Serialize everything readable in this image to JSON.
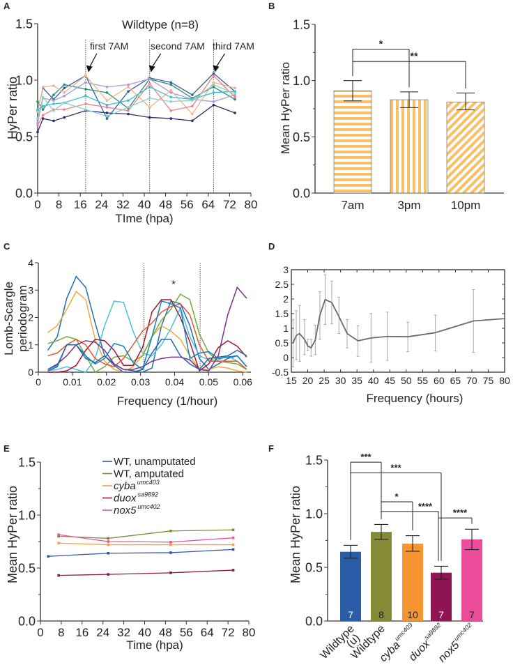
{
  "chart_data": [
    {
      "panel_label": "A",
      "type": "line",
      "title": "Wildtype (n=8)",
      "xlabel": "TIme (hpa)",
      "ylabel": "HyPer ratio",
      "xlim": [
        0,
        80
      ],
      "ylim": [
        0,
        1.5
      ],
      "xticks": [
        0,
        8,
        16,
        24,
        32,
        40,
        48,
        56,
        64,
        72,
        80
      ],
      "xtick_labels": [
        "0",
        "8",
        "16",
        "24",
        "32",
        "40",
        "48",
        "56",
        "64",
        "72",
        "80"
      ],
      "yticks": [
        0,
        0.5,
        1.0,
        1.5
      ],
      "ytick_labels": [
        "0.0",
        "0.5",
        "1.0",
        "1.5"
      ],
      "x": [
        0,
        2,
        6,
        10,
        18,
        26,
        34,
        42,
        50,
        58,
        66,
        74
      ],
      "series": [
        {
          "color": "#2b2d6e",
          "values": [
            0.54,
            0.66,
            0.64,
            0.67,
            0.73,
            0.71,
            0.7,
            0.67,
            0.66,
            0.64,
            0.78,
            0.71
          ]
        },
        {
          "color": "#2f5f9e",
          "values": [
            0.73,
            0.93,
            0.83,
            0.93,
            1.04,
            0.66,
            0.9,
            1.02,
            0.98,
            0.87,
            1.06,
            0.9
          ]
        },
        {
          "color": "#2a8a78",
          "values": [
            0.81,
            0.74,
            0.87,
            0.96,
            0.92,
            0.89,
            0.75,
            1.01,
            0.96,
            0.84,
            0.94,
            0.83
          ]
        },
        {
          "color": "#a99ad8",
          "values": [
            0.62,
            0.84,
            0.82,
            0.86,
            0.98,
            0.94,
            0.96,
            1.01,
            0.89,
            0.83,
            0.81,
            0.87
          ]
        },
        {
          "color": "#f3b28a",
          "values": [
            0.72,
            0.94,
            0.95,
            0.89,
            1.04,
            0.82,
            0.94,
            0.76,
            0.91,
            0.7,
            0.98,
            0.93
          ]
        },
        {
          "color": "#ef7f86",
          "values": [
            0.6,
            0.69,
            0.74,
            0.74,
            0.79,
            0.76,
            0.73,
            0.97,
            0.73,
            0.77,
            1.04,
            0.85
          ]
        },
        {
          "color": "#3cbcd6",
          "values": [
            0.74,
            0.77,
            0.79,
            0.8,
            0.86,
            0.78,
            0.82,
            0.94,
            0.85,
            0.83,
            0.89,
            0.9
          ]
        },
        {
          "color": "#8ccfc0",
          "values": [
            0.66,
            0.85,
            0.73,
            0.8,
            0.74,
            0.68,
            0.76,
            0.84,
            0.81,
            0.82,
            0.96,
            0.88
          ]
        }
      ],
      "vlines": [
        18,
        42,
        66
      ],
      "annotations": [
        {
          "text": "first 7AM",
          "x": 18
        },
        {
          "text": "second 7AM",
          "x": 42
        },
        {
          "text": "third 7AM",
          "x": 66
        }
      ]
    },
    {
      "panel_label": "B",
      "type": "bar",
      "ylabel": "Mean HyPer ratio",
      "ylim": [
        0,
        1.5
      ],
      "yticks": [
        0,
        0.5,
        1.0,
        1.5
      ],
      "ytick_labels": [
        "0.0",
        "0.5",
        "1.0",
        "1.5"
      ],
      "categories": [
        "7am",
        "3pm",
        "10pm"
      ],
      "values": [
        0.91,
        0.83,
        0.81
      ],
      "error_low": [
        0.82,
        0.76,
        0.74
      ],
      "error_high": [
        1.0,
        0.9,
        0.89
      ],
      "patterns": [
        "horizontal-stripes",
        "vertical-stripes",
        "diagonal-stripes"
      ],
      "bar_color": "#f7c066",
      "significance": [
        {
          "from": 0,
          "to": 1,
          "y": 1.28,
          "label": "*"
        },
        {
          "from": 0,
          "to": 2,
          "y": 1.17,
          "label": "**"
        }
      ]
    },
    {
      "panel_label": "C",
      "type": "line",
      "xlabel": "Frequency (1/hour)",
      "ylabel_lines": [
        "Lomb-Scargle",
        "periodogram"
      ],
      "xlim": [
        0,
        0.0624
      ],
      "ylim": [
        0,
        4
      ],
      "xticks": [
        0,
        0.01,
        0.02,
        0.03,
        0.04,
        0.05,
        0.06
      ],
      "xtick_labels": [
        "0",
        "0.01",
        "0.02",
        "0.03",
        "0.04",
        "0.05",
        "0.06"
      ],
      "yticks": [
        0,
        1,
        2,
        3,
        4
      ],
      "ytick_labels": [
        "0",
        "1",
        "2",
        "3",
        "4"
      ],
      "x_step": 0.00278,
      "series": [
        {
          "color": "#1f6fb4",
          "values": [
            0.8,
            1.3,
            2.7,
            3.5,
            3.1,
            1.8,
            0.6,
            0.3,
            0.1,
            0.05,
            0.0,
            0.15,
            1.7,
            2.6,
            2.5,
            1.7,
            0.5,
            0.1,
            0.3,
            0.5,
            0.6,
            0.2
          ]
        },
        {
          "color": "#f5a83a",
          "values": [
            1.45,
            1.7,
            2.3,
            2.95,
            2.65,
            1.2,
            0.4,
            0.1,
            0.0,
            0.2,
            0.6,
            1.3,
            1.7,
            1.5,
            1.2,
            0.6,
            0.1,
            0.1,
            0.2,
            0.15,
            0.05,
            0.0
          ]
        },
        {
          "color": "#46c0e6",
          "values": [
            0.05,
            0.1,
            0.2,
            0.1,
            0.0,
            0.5,
            1.7,
            2.6,
            2.55,
            1.5,
            0.7,
            0.6,
            1.0,
            1.6,
            2.35,
            1.3,
            0.6,
            0.45,
            0.45,
            0.6,
            0.4,
            0.1
          ]
        },
        {
          "color": "#72ac3e",
          "values": [
            1.05,
            1.15,
            1.3,
            1.2,
            0.6,
            0.0,
            0.2,
            0.55,
            0.6,
            0.4,
            0.6,
            1.3,
            1.9,
            2.3,
            2.85,
            2.65,
            1.4,
            0.7,
            0.4,
            0.35,
            0.3,
            0.1
          ]
        },
        {
          "color": "#a3162f",
          "values": [
            0.0,
            0.0,
            0.05,
            0.25,
            0.8,
            1.2,
            1.15,
            0.8,
            0.25,
            0.25,
            0.9,
            2.2,
            2.65,
            2.65,
            2.0,
            1.1,
            0.05,
            0.3,
            0.9,
            1.15,
            0.95,
            0.55
          ]
        },
        {
          "color": "#e8552a",
          "values": [
            0.6,
            0.7,
            1.0,
            1.2,
            1.0,
            0.5,
            0.3,
            0.2,
            0.5,
            1.0,
            1.5,
            1.8,
            2.2,
            2.4,
            2.5,
            2.1,
            1.0,
            0.4,
            0.4,
            0.4,
            0.4,
            0.1
          ]
        },
        {
          "color": "#7e2f8e",
          "values": [
            0.1,
            0.3,
            0.6,
            1.0,
            1.15,
            1.1,
            0.8,
            0.3,
            0.1,
            0.1,
            0.2,
            0.4,
            0.5,
            0.55,
            0.55,
            0.45,
            0.1,
            0.05,
            0.6,
            2.1,
            3.1,
            2.7,
            2.45
          ]
        },
        {
          "color": "#0f7fc7",
          "values": [
            0.1,
            0.25,
            1.0,
            1.0,
            0.6,
            0.3,
            0.5,
            1.05,
            0.95,
            0.35,
            0.1,
            1.3,
            2.6,
            2.5,
            2.35,
            0.5,
            0.7,
            0.75,
            0.5,
            0.55,
            0.6,
            0.2
          ]
        },
        {
          "color": "#2a64a8",
          "values": [
            0.05,
            0.2,
            1.0,
            1.0,
            0.5,
            0.35,
            0.6,
            0.25,
            0.0,
            0.0,
            0.1,
            0.7,
            1.2,
            1.2,
            0.6,
            0.3,
            0.1,
            0.5,
            0.55,
            0.6,
            0.8,
            0.6
          ]
        }
      ],
      "vlines": [
        0.031,
        0.0475
      ],
      "annotation": {
        "text": "*",
        "x": 0.0397,
        "y": 3.25
      }
    },
    {
      "panel_label": "D",
      "type": "line",
      "xlabel": "Frequency (hours)",
      "xlim": [
        15,
        80
      ],
      "ylim": [
        -0.5,
        3
      ],
      "xticks": [
        15,
        20,
        25,
        30,
        35,
        40,
        45,
        50,
        55,
        60,
        65,
        70,
        75,
        80
      ],
      "xtick_labels": [
        "15",
        "20",
        "25",
        "30",
        "35",
        "40",
        "45",
        "50",
        "55",
        "60",
        "65",
        "70",
        "75",
        "80"
      ],
      "yticks": [
        -0.5,
        0,
        0.5,
        1,
        1.5,
        2,
        2.5,
        3
      ],
      "ytick_labels": [
        "-0.5",
        "0",
        "0.5",
        "1",
        "1.5",
        "2",
        "2.5",
        "3"
      ],
      "line_color": "#6b6b6b",
      "error_color": "#aaaaaa",
      "points": [
        {
          "x": 15.5,
          "y": 0.5,
          "lo": -0.32,
          "hi": 1.3
        },
        {
          "x": 16.5,
          "y": 0.75,
          "lo": -0.07,
          "hi": 1.6
        },
        {
          "x": 17.5,
          "y": 0.82,
          "lo": -0.13,
          "hi": 1.78
        },
        {
          "x": 19,
          "y": 0.62,
          "lo": 0.1,
          "hi": 1.3
        },
        {
          "x": 20,
          "y": 0.4,
          "lo": 0.25,
          "hi": 0.62
        },
        {
          "x": 21,
          "y": 0.33,
          "lo": 0.05,
          "hi": 0.62
        },
        {
          "x": 22.3,
          "y": 0.6,
          "lo": 0.1,
          "hi": 1.1
        },
        {
          "x": 23.7,
          "y": 1.45,
          "lo": 0.62,
          "hi": 2.25
        },
        {
          "x": 25.3,
          "y": 1.98,
          "lo": 1.13,
          "hi": 2.83
        },
        {
          "x": 27.3,
          "y": 1.88,
          "lo": 1.15,
          "hi": 2.61
        },
        {
          "x": 29.5,
          "y": 1.4,
          "lo": 0.82,
          "hi": 2.06
        },
        {
          "x": 32,
          "y": 0.82,
          "lo": 0.33,
          "hi": 1.3
        },
        {
          "x": 35.3,
          "y": 0.57,
          "lo": 0.04,
          "hi": 1.09
        },
        {
          "x": 39.3,
          "y": 0.67,
          "lo": -0.16,
          "hi": 1.5
        },
        {
          "x": 44.2,
          "y": 0.72,
          "lo": -0.1,
          "hi": 1.55
        },
        {
          "x": 50.5,
          "y": 0.71,
          "lo": 0.2,
          "hi": 1.21
        },
        {
          "x": 58.9,
          "y": 0.85,
          "lo": 0.22,
          "hi": 1.45
        },
        {
          "x": 70.5,
          "y": 1.25,
          "lo": 0.18,
          "hi": 2.32
        },
        {
          "x": 80,
          "y": 1.33
        }
      ]
    },
    {
      "panel_label": "E",
      "type": "line",
      "xlabel": "Time (hpa)",
      "ylabel": "Mean HyPer ratio",
      "xlim": [
        0,
        80
      ],
      "ylim": [
        0,
        1.5
      ],
      "xticks": [
        0,
        8,
        16,
        24,
        32,
        40,
        48,
        56,
        64,
        72,
        80
      ],
      "xtick_labels": [
        "0",
        "8",
        "16",
        "24",
        "32",
        "40",
        "48",
        "56",
        "64",
        "72",
        "80"
      ],
      "yticks": [
        0,
        0.5,
        1.0,
        1.5
      ],
      "ytick_labels": [
        "0.0",
        "0.5",
        "1.0",
        "1.5"
      ],
      "legend_position": "top-center",
      "series": [
        {
          "name": "WT, unamputated",
          "sup": "",
          "italic": false,
          "color": "#3056a8",
          "x": [
            3,
            26,
            50,
            74
          ],
          "values": [
            0.61,
            0.64,
            0.645,
            0.675
          ]
        },
        {
          "name": "WT, amputated",
          "sup": "",
          "italic": false,
          "color": "#7d8c3a",
          "x": [
            7,
            26,
            50,
            74
          ],
          "values": [
            0.8,
            0.78,
            0.85,
            0.86
          ]
        },
        {
          "name": "cyba",
          "sup": "umc403",
          "italic": true,
          "color": "#f5a04a",
          "x": [
            7,
            26,
            50,
            74
          ],
          "values": [
            0.735,
            0.72,
            0.72,
            0.72
          ]
        },
        {
          "name": "duox",
          "sup": "sa9892",
          "italic": true,
          "color": "#8b1a4e",
          "x": [
            7,
            26,
            50,
            74
          ],
          "values": [
            0.43,
            0.44,
            0.455,
            0.48
          ]
        },
        {
          "name": "nox5",
          "sup": "umc402",
          "italic": true,
          "color": "#e8559a",
          "x": [
            7,
            26,
            50,
            74
          ],
          "values": [
            0.815,
            0.75,
            0.745,
            0.785
          ]
        }
      ]
    },
    {
      "panel_label": "F",
      "type": "bar",
      "ylabel": "Mean HyPer ratio",
      "ylim": [
        0,
        1.5
      ],
      "yticks": [
        0,
        0.5,
        1.0,
        1.5
      ],
      "ytick_labels": [
        "0.0",
        "0.5",
        "1.0",
        "1.5"
      ],
      "categories": [
        {
          "name": "Wildtype",
          "line2": "(u)",
          "sup": "",
          "italic": false
        },
        {
          "name": "Wildtype",
          "line2": "",
          "sup": "",
          "italic": false
        },
        {
          "name": "cyba",
          "line2": "",
          "sup": "umc403",
          "italic": true
        },
        {
          "name": "duox",
          "line2": "",
          "sup": "sa9892",
          "italic": true
        },
        {
          "name": "nox5",
          "line2": "",
          "sup": "umc402",
          "italic": true
        }
      ],
      "values": [
        0.645,
        0.83,
        0.72,
        0.45,
        0.76
      ],
      "error_low": [
        0.585,
        0.76,
        0.65,
        0.39,
        0.665
      ],
      "error_high": [
        0.705,
        0.9,
        0.795,
        0.51,
        0.855
      ],
      "n_labels": [
        "7",
        "8",
        "10",
        "7",
        "7"
      ],
      "n_label_colors": [
        "#ffffff",
        "#222222",
        "#222222",
        "#ffffff",
        "#222222"
      ],
      "colors": [
        "#2a5ca8",
        "#848a36",
        "#f59430",
        "#8e1552",
        "#ec4c9a"
      ],
      "significance": [
        {
          "from": 0,
          "to": 1,
          "y": 1.48,
          "label": "***"
        },
        {
          "from": 0,
          "to": 3,
          "y": 1.38,
          "label": "***"
        },
        {
          "from": 1,
          "to": 2,
          "y": 1.11,
          "label": "*"
        },
        {
          "from": 1,
          "to": 3,
          "y": 1.02,
          "label": "****"
        },
        {
          "from": 3,
          "to": 4,
          "y": 0.96,
          "label": "****"
        }
      ]
    }
  ]
}
